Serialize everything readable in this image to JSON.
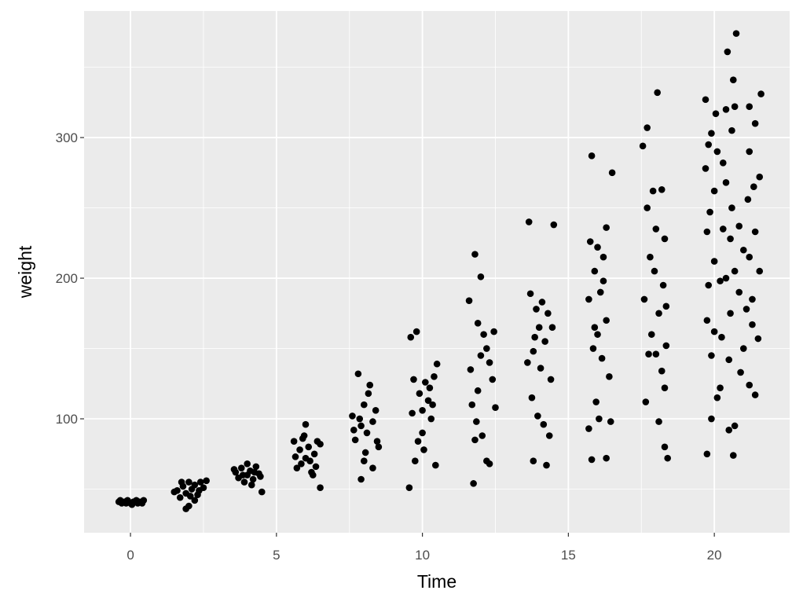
{
  "chart_data": {
    "type": "scatter",
    "x_label": "Time",
    "y_label": "weight",
    "x": [
      -0.4,
      -0.3,
      -0.2,
      -0.1,
      0,
      0.1,
      0.2,
      0.3,
      0.4,
      0.45,
      -0.35,
      0.05,
      0.25,
      -0.15,
      1.6,
      1.7,
      1.8,
      1.9,
      2.0,
      2.0,
      1.9,
      2.1,
      2.2,
      2.3,
      2.4,
      2.5,
      1.5,
      2.2,
      2.6,
      1.75,
      2.35,
      2.05,
      3.6,
      3.7,
      3.8,
      3.9,
      4.0,
      4.0,
      4.1,
      4.2,
      4.3,
      4.4,
      4.5,
      4.45,
      3.55,
      4.15,
      3.85,
      4.25,
      5.6,
      5.7,
      5.8,
      5.9,
      6.0,
      6.0,
      6.1,
      6.2,
      6.3,
      6.4,
      6.5,
      6.5,
      5.65,
      6.15,
      6.35,
      5.95,
      6.25,
      5.85,
      7.6,
      7.7,
      7.8,
      7.9,
      8.0,
      8.0,
      8.1,
      8.2,
      8.3,
      8.4,
      8.5,
      7.9,
      8.3,
      7.65,
      8.15,
      7.85,
      8.45,
      8.05,
      9.55,
      9.6,
      9.8,
      9.7,
      9.9,
      10.0,
      10.0,
      10.1,
      10.2,
      10.3,
      10.4,
      10.5,
      10.45,
      9.75,
      9.85,
      10.25,
      9.65,
      10.05,
      10.35,
      11.6,
      11.8,
      12.0,
      11.75,
      11.9,
      12.1,
      12.2,
      12.3,
      12.4,
      12.5,
      11.65,
      11.7,
      11.8,
      11.9,
      12.0,
      12.2,
      12.3,
      11.85,
      12.05,
      12.45,
      13.65,
      14.5,
      13.7,
      13.9,
      14.1,
      14.3,
      14.0,
      14.2,
      13.8,
      13.6,
      14.4,
      13.75,
      13.95,
      14.15,
      14.35,
      13.8,
      14.25,
      14.05,
      14.45,
      13.85,
      15.8,
      16.5,
      16.3,
      15.75,
      16.0,
      16.2,
      15.9,
      16.1,
      15.7,
      16.3,
      16.0,
      15.85,
      16.15,
      16.4,
      15.95,
      16.05,
      16.45,
      15.7,
      15.8,
      16.3,
      16.2,
      15.9,
      18.05,
      17.7,
      17.55,
      17.9,
      18.2,
      17.7,
      18.0,
      18.3,
      17.8,
      17.95,
      18.25,
      17.6,
      18.1,
      17.85,
      18.35,
      18.0,
      17.75,
      18.2,
      18.3,
      17.65,
      18.1,
      18.3,
      18.4,
      18.35,
      20.75,
      20.45,
      20.65,
      20.05,
      19.8,
      19.7,
      20.4,
      20.7,
      21.2,
      21.6,
      21.4,
      20.6,
      19.9,
      20.1,
      20.3,
      21.2,
      19.7,
      20.4,
      21.35,
      21.55,
      20.0,
      20.6,
      21.15,
      19.85,
      20.3,
      20.85,
      21.4,
      19.75,
      20.55,
      21.0,
      21.2,
      20.0,
      20.4,
      20.7,
      21.55,
      19.8,
      20.2,
      20.85,
      21.3,
      20.55,
      21.1,
      19.75,
      20.0,
      20.25,
      21.3,
      21.5,
      21.0,
      19.9,
      20.5,
      20.9,
      20.2,
      20.1,
      21.2,
      21.4,
      19.9,
      20.7,
      20.5,
      19.75,
      20.65
    ],
    "values": [
      41,
      40,
      41,
      42,
      40,
      41,
      42,
      41,
      40,
      42,
      42,
      39,
      40,
      40,
      49,
      44,
      52,
      47,
      55,
      38,
      36,
      50,
      53,
      46,
      55,
      51,
      48,
      42,
      56,
      55,
      49,
      45,
      62,
      58,
      65,
      55,
      68,
      60,
      63,
      57,
      66,
      61,
      48,
      59,
      64,
      53,
      60,
      62,
      84,
      65,
      78,
      86,
      96,
      72,
      80,
      62,
      75,
      84,
      51,
      82,
      73,
      70,
      66,
      88,
      60,
      68,
      102,
      85,
      132,
      95,
      70,
      110,
      90,
      124,
      98,
      106,
      80,
      57,
      65,
      92,
      118,
      100,
      84,
      76,
      51,
      158,
      162,
      128,
      118,
      106,
      90,
      126,
      113,
      100,
      130,
      139,
      67,
      70,
      84,
      122,
      104,
      78,
      110,
      184,
      217,
      201,
      54,
      168,
      160,
      150,
      140,
      128,
      108,
      135,
      110,
      85,
      120,
      145,
      70,
      68,
      98,
      88,
      162,
      240,
      238,
      189,
      178,
      183,
      175,
      165,
      155,
      148,
      140,
      128,
      115,
      102,
      96,
      88,
      70,
      67,
      136,
      165,
      158,
      287,
      275,
      236,
      226,
      222,
      215,
      205,
      190,
      185,
      170,
      160,
      150,
      143,
      130,
      112,
      100,
      98,
      93,
      71,
      72,
      198,
      165,
      332,
      307,
      294,
      262,
      263,
      250,
      235,
      228,
      215,
      205,
      195,
      185,
      175,
      160,
      152,
      146,
      146,
      134,
      122,
      112,
      98,
      80,
      72,
      180,
      374,
      361,
      341,
      317,
      295,
      327,
      320,
      322,
      322,
      331,
      310,
      305,
      303,
      290,
      282,
      290,
      278,
      268,
      265,
      272,
      262,
      250,
      256,
      247,
      235,
      237,
      233,
      233,
      228,
      220,
      215,
      212,
      200,
      205,
      205,
      195,
      198,
      190,
      185,
      175,
      178,
      170,
      162,
      158,
      167,
      157,
      150,
      145,
      142,
      133,
      122,
      115,
      124,
      117,
      100,
      95,
      92,
      75,
      74
    ],
    "color": "#000000",
    "xlim": [
      -1.59,
      22.58
    ],
    "ylim": [
      19,
      390
    ],
    "xticks": [
      0,
      5,
      10,
      15,
      20
    ],
    "yticks": [
      100,
      200,
      300
    ],
    "x_minor_grid": [
      2.5,
      7.5,
      12.5,
      17.5
    ],
    "y_minor_grid": [
      50,
      150,
      250,
      350
    ],
    "grid": true
  }
}
